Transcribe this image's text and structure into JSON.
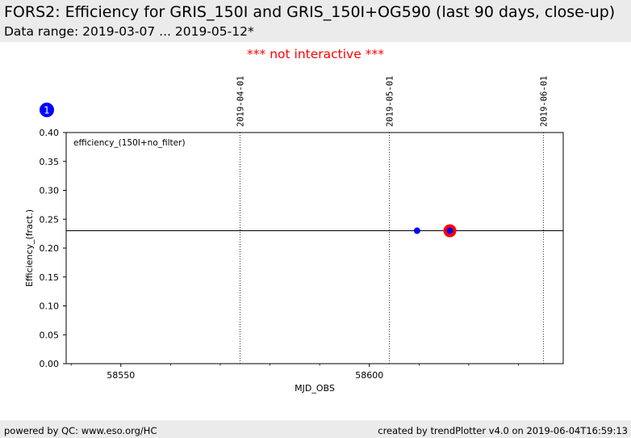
{
  "header": {
    "title": "FORS2: Efficiency for GRIS_150I and GRIS_150I+OG590 (last 90 days, close-up)",
    "subtitle": "Data range: 2019-03-07 ... 2019-05-12*"
  },
  "notice": "*** not interactive ***",
  "footer": {
    "left": "powered by QC: www.eso.org/HC",
    "right": "created by trendPlotter v4.0 on 2019-06-04T16:59:13"
  },
  "badge": "1",
  "colors": {
    "point": "#0000ff",
    "highlight": "#ff0000",
    "notice": "#ff0000",
    "header_bg": "#ebebeb"
  },
  "chart_data": {
    "type": "scatter",
    "xlabel": "MJD_OBS",
    "ylabel": "Efficiency_(fract.)",
    "legend": "efficiency_(150I+no_filter)",
    "legend_position": "top-left",
    "xlim": [
      58539,
      58639
    ],
    "ylim": [
      0.0,
      0.4
    ],
    "xticks": [
      58550,
      58600
    ],
    "yticks": [
      0.0,
      0.05,
      0.1,
      0.15,
      0.2,
      0.25,
      0.3,
      0.35,
      0.4
    ],
    "ytick_labels": [
      "0.00",
      "0.05",
      "0.10",
      "0.15",
      "0.20",
      "0.25",
      "0.30",
      "0.35",
      "0.40"
    ],
    "reference_line": 0.23,
    "date_markers": [
      {
        "mjd": 58574,
        "label": "2019-04-01"
      },
      {
        "mjd": 58604,
        "label": "2019-05-01"
      },
      {
        "mjd": 58635,
        "label": "2019-06-01"
      }
    ],
    "points": [
      {
        "x": 58609.6,
        "y": 0.23,
        "highlight": false
      },
      {
        "x": 58616.2,
        "y": 0.23,
        "highlight": true
      }
    ],
    "grid": false
  }
}
